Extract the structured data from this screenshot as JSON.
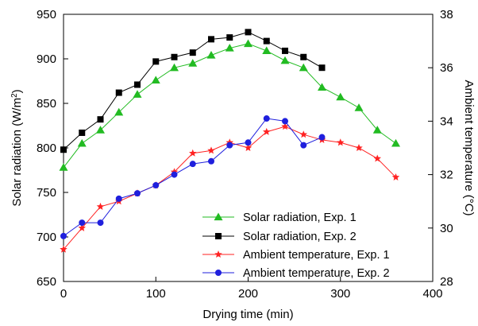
{
  "chart_data": {
    "type": "line",
    "xlabel": "Drying time (min)",
    "ylabel_left": "Solar radiation (W/m",
    "ylabel_left_sup": "2",
    "ylabel_left_end": ")",
    "ylabel_right": "Ambient temperature (°C)",
    "xlim": [
      0,
      400
    ],
    "xticks": [
      0,
      100,
      200,
      300,
      400
    ],
    "ylim_left": [
      650,
      950
    ],
    "yticks_left": [
      650,
      700,
      750,
      800,
      850,
      900,
      950
    ],
    "ylim_right": [
      28,
      38
    ],
    "yticks_right": [
      28,
      30,
      32,
      34,
      36,
      38
    ],
    "grid": false,
    "legend_placement": "bottom-right",
    "series": [
      {
        "name": "Solar radiation, Exp. 1",
        "axis": "left",
        "color": "#22bb22",
        "marker": "triangle",
        "x": [
          0,
          20,
          40,
          60,
          80,
          100,
          120,
          140,
          160,
          180,
          200,
          220,
          240,
          260,
          280,
          300,
          320,
          340,
          360
        ],
        "y": [
          778,
          805,
          820,
          840,
          860,
          876,
          890,
          895,
          904,
          912,
          917,
          909,
          898,
          890,
          868,
          857,
          845,
          820,
          805
        ]
      },
      {
        "name": "Solar radiation, Exp. 2",
        "axis": "left",
        "color": "#000000",
        "marker": "square",
        "x": [
          0,
          20,
          40,
          60,
          80,
          100,
          120,
          140,
          160,
          180,
          200,
          220,
          240,
          260,
          280
        ],
        "y": [
          798,
          817,
          832,
          862,
          871,
          897,
          902,
          907,
          922,
          924,
          930,
          920,
          909,
          902,
          890
        ]
      },
      {
        "name": "Ambient temperature, Exp. 1",
        "axis": "right",
        "color": "#ff2222",
        "marker": "star",
        "x": [
          0,
          20,
          40,
          60,
          80,
          100,
          120,
          140,
          160,
          180,
          200,
          220,
          240,
          260,
          280,
          300,
          320,
          340,
          360
        ],
        "y": [
          29.2,
          30.0,
          30.8,
          31.0,
          31.3,
          31.6,
          32.1,
          32.8,
          32.9,
          33.2,
          33.0,
          33.6,
          33.8,
          33.5,
          33.3,
          33.2,
          33.0,
          32.6,
          31.9
        ]
      },
      {
        "name": "Ambient temperature, Exp. 2",
        "axis": "right",
        "color": "#1f1fdd",
        "marker": "circle",
        "x": [
          0,
          20,
          40,
          60,
          80,
          100,
          120,
          140,
          160,
          180,
          200,
          220,
          240,
          260,
          280
        ],
        "y": [
          29.7,
          30.2,
          30.2,
          31.1,
          31.3,
          31.6,
          32.0,
          32.4,
          32.5,
          33.1,
          33.2,
          34.1,
          34.0,
          33.1,
          33.4
        ]
      }
    ]
  }
}
